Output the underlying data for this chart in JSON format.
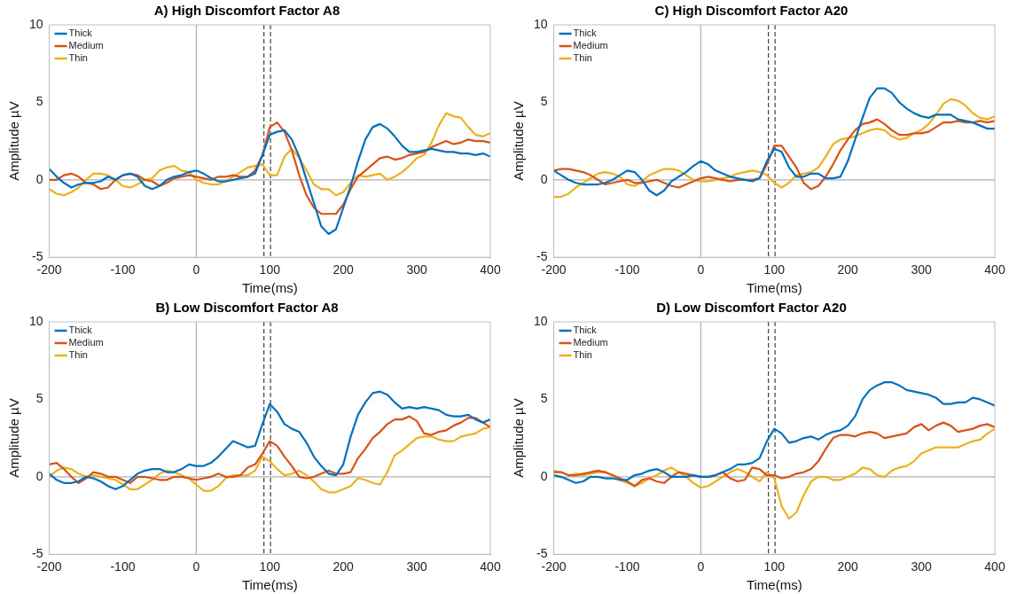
{
  "chart_data": [
    {
      "type": "line",
      "title": "A) High Discomfort Factor A8",
      "xlabel": "Time(ms)",
      "ylabel": "Amplitude µV",
      "x": [
        -200,
        -190,
        -180,
        -170,
        -160,
        -150,
        -140,
        -130,
        -120,
        -110,
        -100,
        -90,
        -80,
        -70,
        -60,
        -50,
        -40,
        -30,
        -20,
        -10,
        0,
        10,
        20,
        30,
        40,
        50,
        60,
        70,
        80,
        90,
        100,
        110,
        120,
        130,
        140,
        150,
        160,
        170,
        180,
        190,
        200,
        210,
        220,
        230,
        240,
        250,
        260,
        270,
        280,
        290,
        300,
        310,
        320,
        330,
        340,
        350,
        360,
        370,
        380,
        390,
        400
      ],
      "xlim": [
        -200,
        400
      ],
      "ylim": [
        -5,
        10
      ],
      "xticks": [
        -200,
        -100,
        0,
        100,
        200,
        300,
        400
      ],
      "yticks": [
        -5,
        0,
        5,
        10
      ],
      "grid": false,
      "legend": "top left",
      "ref_lines": [
        {
          "axis": "x",
          "value": 0,
          "color": "#b0b0b0",
          "line_style": "solid"
        },
        {
          "axis": "y",
          "value": 0,
          "color": "#b0b0b0",
          "line_style": "solid"
        },
        {
          "axis": "x",
          "value": 92,
          "color": "#404040",
          "line_style": "dashed"
        },
        {
          "axis": "x",
          "value": 101,
          "color": "#404040",
          "line_style": "dashed"
        }
      ],
      "series": [
        {
          "name": "Thick",
          "color": "#0072bd",
          "values": [
            0.7,
            0.2,
            -0.2,
            -0.5,
            -0.3,
            -0.2,
            -0.2,
            -0.1,
            0.2,
            0.0,
            0.3,
            0.4,
            0.2,
            -0.4,
            -0.6,
            -0.4,
            0.0,
            0.2,
            0.3,
            0.5,
            0.6,
            0.4,
            0.1,
            -0.1,
            -0.1,
            0.0,
            0.1,
            0.2,
            0.4,
            1.6,
            2.9,
            3.1,
            3.2,
            2.6,
            1.5,
            0.0,
            -1.5,
            -3.0,
            -3.5,
            -3.2,
            -1.8,
            -0.4,
            1.2,
            2.6,
            3.4,
            3.6,
            3.3,
            2.8,
            2.2,
            1.8,
            1.8,
            1.9,
            2.0,
            1.9,
            1.8,
            1.8,
            1.7,
            1.7,
            1.6,
            1.7,
            1.5
          ]
        },
        {
          "name": "Medium",
          "color": "#d95319",
          "values": [
            0.0,
            0.0,
            0.3,
            0.4,
            0.2,
            -0.2,
            -0.3,
            -0.6,
            -0.5,
            0.0,
            0.3,
            0.4,
            0.3,
            0.0,
            -0.1,
            -0.4,
            -0.2,
            0.1,
            0.2,
            0.3,
            0.2,
            0.1,
            0.0,
            0.2,
            0.2,
            0.3,
            0.2,
            0.2,
            0.6,
            1.6,
            3.4,
            3.7,
            3.1,
            1.9,
            0.3,
            -1.0,
            -1.8,
            -2.2,
            -2.2,
            -2.2,
            -1.6,
            -0.6,
            0.2,
            0.6,
            1.0,
            1.4,
            1.5,
            1.3,
            1.4,
            1.6,
            1.7,
            1.8,
            2.1,
            2.3,
            2.5,
            2.3,
            2.4,
            2.6,
            2.5,
            2.5,
            2.4
          ]
        },
        {
          "name": "Thin",
          "color": "#edb120",
          "values": [
            -0.6,
            -0.9,
            -1.0,
            -0.8,
            -0.5,
            0.0,
            0.4,
            0.4,
            0.3,
            0.0,
            -0.4,
            -0.5,
            -0.3,
            0.0,
            0.1,
            0.6,
            0.8,
            0.9,
            0.6,
            0.5,
            0.0,
            -0.2,
            -0.3,
            -0.3,
            -0.1,
            0.2,
            0.5,
            0.8,
            0.9,
            1.0,
            0.3,
            0.3,
            1.5,
            2.0,
            1.4,
            0.6,
            -0.3,
            -0.6,
            -0.6,
            -1.0,
            -0.8,
            -0.2,
            0.3,
            0.2,
            0.3,
            0.4,
            0.0,
            0.2,
            0.5,
            0.9,
            1.4,
            1.6,
            2.4,
            3.5,
            4.3,
            4.1,
            4.0,
            3.4,
            2.9,
            2.8,
            3.0
          ]
        }
      ]
    },
    {
      "type": "line",
      "title": "C) High Discomfort Factor A20",
      "xlabel": "Time(ms)",
      "ylabel": "Amplitude µV",
      "x": [
        -200,
        -190,
        -180,
        -170,
        -160,
        -150,
        -140,
        -130,
        -120,
        -110,
        -100,
        -90,
        -80,
        -70,
        -60,
        -50,
        -40,
        -30,
        -20,
        -10,
        0,
        10,
        20,
        30,
        40,
        50,
        60,
        70,
        80,
        90,
        100,
        110,
        120,
        130,
        140,
        150,
        160,
        170,
        180,
        190,
        200,
        210,
        220,
        230,
        240,
        250,
        260,
        270,
        280,
        290,
        300,
        310,
        320,
        330,
        340,
        350,
        360,
        370,
        380,
        390,
        400
      ],
      "xlim": [
        -200,
        400
      ],
      "ylim": [
        -5,
        10
      ],
      "xticks": [
        -200,
        -100,
        0,
        100,
        200,
        300,
        400
      ],
      "yticks": [
        -5,
        0,
        5,
        10
      ],
      "grid": false,
      "legend": "top left",
      "ref_lines": [
        {
          "axis": "x",
          "value": 0,
          "color": "#b0b0b0",
          "line_style": "solid"
        },
        {
          "axis": "y",
          "value": 0,
          "color": "#b0b0b0",
          "line_style": "solid"
        },
        {
          "axis": "x",
          "value": 92,
          "color": "#404040",
          "line_style": "dashed"
        },
        {
          "axis": "x",
          "value": 101,
          "color": "#404040",
          "line_style": "dashed"
        }
      ],
      "series": [
        {
          "name": "Thick",
          "color": "#0072bd",
          "values": [
            0.6,
            0.3,
            0.0,
            -0.2,
            -0.3,
            -0.3,
            -0.3,
            -0.2,
            0.0,
            0.3,
            0.6,
            0.5,
            0.0,
            -0.7,
            -1.0,
            -0.7,
            -0.1,
            0.2,
            0.5,
            0.9,
            1.2,
            1.0,
            0.6,
            0.4,
            0.2,
            0.1,
            0.0,
            -0.1,
            0.1,
            1.2,
            2.0,
            1.8,
            0.8,
            0.2,
            0.2,
            0.4,
            0.4,
            0.1,
            0.1,
            0.2,
            1.2,
            2.6,
            4.0,
            5.3,
            5.9,
            5.9,
            5.6,
            5.0,
            4.6,
            4.3,
            4.1,
            4.0,
            4.2,
            4.2,
            4.2,
            3.9,
            3.8,
            3.7,
            3.5,
            3.3,
            3.3
          ]
        },
        {
          "name": "Medium",
          "color": "#d95319",
          "values": [
            0.6,
            0.7,
            0.7,
            0.6,
            0.5,
            0.3,
            0.0,
            -0.3,
            -0.2,
            -0.1,
            0.0,
            -0.2,
            -0.2,
            -0.1,
            0.0,
            -0.2,
            -0.4,
            -0.5,
            -0.3,
            -0.1,
            0.1,
            0.2,
            0.1,
            0.0,
            -0.1,
            0.0,
            0.0,
            0.0,
            0.1,
            1.0,
            2.2,
            2.2,
            1.5,
            0.8,
            -0.2,
            -0.6,
            -0.4,
            0.2,
            1.0,
            1.9,
            2.6,
            3.2,
            3.6,
            3.7,
            3.9,
            3.6,
            3.2,
            2.9,
            2.9,
            3.0,
            3.0,
            3.1,
            3.4,
            3.7,
            3.7,
            3.8,
            3.7,
            3.7,
            3.8,
            3.7,
            3.8
          ]
        },
        {
          "name": "Thin",
          "color": "#edb120",
          "values": [
            -1.1,
            -1.1,
            -0.9,
            -0.5,
            -0.2,
            0.1,
            0.4,
            0.5,
            0.4,
            0.2,
            -0.3,
            -0.4,
            -0.1,
            0.3,
            0.5,
            0.7,
            0.7,
            0.6,
            0.3,
            0.0,
            -0.1,
            -0.1,
            0.0,
            0.1,
            0.2,
            0.4,
            0.5,
            0.6,
            0.5,
            0.3,
            -0.2,
            -0.5,
            -0.2,
            0.3,
            0.4,
            0.5,
            0.8,
            1.5,
            2.3,
            2.6,
            2.7,
            2.8,
            3.0,
            3.2,
            3.3,
            3.2,
            2.8,
            2.6,
            2.7,
            3.0,
            3.2,
            3.6,
            4.2,
            4.9,
            5.2,
            5.1,
            4.8,
            4.3,
            4.0,
            3.9,
            4.1
          ]
        }
      ]
    },
    {
      "type": "line",
      "title": "B) Low Discomfort Factor A8",
      "xlabel": "Time(ms)",
      "ylabel": "Amplitude µV",
      "x": [
        -200,
        -190,
        -180,
        -170,
        -160,
        -150,
        -140,
        -130,
        -120,
        -110,
        -100,
        -90,
        -80,
        -70,
        -60,
        -50,
        -40,
        -30,
        -20,
        -10,
        0,
        10,
        20,
        30,
        40,
        50,
        60,
        70,
        80,
        90,
        100,
        110,
        120,
        130,
        140,
        150,
        160,
        170,
        180,
        190,
        200,
        210,
        220,
        230,
        240,
        250,
        260,
        270,
        280,
        290,
        300,
        310,
        320,
        330,
        340,
        350,
        360,
        370,
        380,
        390,
        400
      ],
      "xlim": [
        -200,
        400
      ],
      "ylim": [
        -5,
        10
      ],
      "xticks": [
        -200,
        -100,
        0,
        100,
        200,
        300,
        400
      ],
      "yticks": [
        -5,
        0,
        5,
        10
      ],
      "grid": false,
      "legend": "top left",
      "ref_lines": [
        {
          "axis": "x",
          "value": 0,
          "color": "#b0b0b0",
          "line_style": "solid"
        },
        {
          "axis": "y",
          "value": 0,
          "color": "#b0b0b0",
          "line_style": "solid"
        },
        {
          "axis": "x",
          "value": 92,
          "color": "#404040",
          "line_style": "dashed"
        },
        {
          "axis": "x",
          "value": 101,
          "color": "#404040",
          "line_style": "dashed"
        }
      ],
      "series": [
        {
          "name": "Thick",
          "color": "#0072bd",
          "values": [
            0.2,
            -0.2,
            -0.4,
            -0.4,
            -0.3,
            0.0,
            -0.1,
            -0.3,
            -0.6,
            -0.8,
            -0.6,
            -0.2,
            0.2,
            0.4,
            0.5,
            0.5,
            0.3,
            0.3,
            0.5,
            0.8,
            0.7,
            0.7,
            0.9,
            1.3,
            1.8,
            2.3,
            2.1,
            1.9,
            2.0,
            3.4,
            4.7,
            4.2,
            3.4,
            3.1,
            2.9,
            2.2,
            1.3,
            0.7,
            0.2,
            0.1,
            0.8,
            2.6,
            4.0,
            4.8,
            5.4,
            5.5,
            5.3,
            4.8,
            4.4,
            4.5,
            4.4,
            4.5,
            4.4,
            4.3,
            4.0,
            3.9,
            3.9,
            4.0,
            3.7,
            3.5,
            3.7
          ]
        },
        {
          "name": "Medium",
          "color": "#d95319",
          "values": [
            0.8,
            0.9,
            0.5,
            0.0,
            -0.4,
            -0.1,
            0.3,
            0.2,
            0.0,
            0.0,
            -0.2,
            -0.4,
            0.0,
            0.0,
            -0.1,
            -0.2,
            -0.2,
            0.0,
            0.0,
            -0.1,
            -0.2,
            -0.1,
            0.0,
            0.2,
            0.0,
            0.0,
            0.1,
            0.6,
            0.8,
            1.5,
            2.3,
            2.0,
            1.3,
            0.7,
            0.0,
            -0.1,
            0.0,
            0.2,
            0.4,
            0.2,
            0.2,
            0.3,
            1.2,
            1.8,
            2.5,
            2.9,
            3.4,
            3.7,
            3.7,
            3.9,
            3.6,
            2.8,
            2.7,
            2.9,
            3.0,
            3.3,
            3.5,
            3.8,
            3.8,
            3.5,
            3.2
          ]
        },
        {
          "name": "Thin",
          "color": "#edb120",
          "values": [
            0.0,
            0.4,
            0.6,
            0.5,
            0.2,
            0.0,
            0.1,
            0.0,
            -0.1,
            -0.2,
            -0.5,
            -0.8,
            -0.8,
            -0.5,
            -0.2,
            0.2,
            0.4,
            0.3,
            0.1,
            -0.1,
            -0.5,
            -0.9,
            -0.9,
            -0.6,
            -0.1,
            0.1,
            0.1,
            0.1,
            0.4,
            1.3,
            1.0,
            0.5,
            0.1,
            0.2,
            0.4,
            0.1,
            -0.3,
            -0.8,
            -1.0,
            -1.0,
            -0.8,
            -0.6,
            -0.1,
            -0.2,
            -0.4,
            -0.5,
            0.3,
            1.4,
            1.7,
            2.1,
            2.5,
            2.6,
            2.6,
            2.4,
            2.3,
            2.3,
            2.6,
            2.7,
            2.8,
            3.1,
            3.2
          ]
        }
      ]
    },
    {
      "type": "line",
      "title": "D) Low Discomfort Factor A20",
      "xlabel": "Time(ms)",
      "ylabel": "Amplitude µV",
      "x": [
        -200,
        -190,
        -180,
        -170,
        -160,
        -150,
        -140,
        -130,
        -120,
        -110,
        -100,
        -90,
        -80,
        -70,
        -60,
        -50,
        -40,
        -30,
        -20,
        -10,
        0,
        10,
        20,
        30,
        40,
        50,
        60,
        70,
        80,
        90,
        100,
        110,
        120,
        130,
        140,
        150,
        160,
        170,
        180,
        190,
        200,
        210,
        220,
        230,
        240,
        250,
        260,
        270,
        280,
        290,
        300,
        310,
        320,
        330,
        340,
        350,
        360,
        370,
        380,
        390,
        400
      ],
      "xlim": [
        -200,
        400
      ],
      "ylim": [
        -5,
        10
      ],
      "xticks": [
        -200,
        -100,
        0,
        100,
        200,
        300,
        400
      ],
      "yticks": [
        -5,
        0,
        5,
        10
      ],
      "grid": false,
      "legend": "top left",
      "ref_lines": [
        {
          "axis": "x",
          "value": 0,
          "color": "#b0b0b0",
          "line_style": "solid"
        },
        {
          "axis": "y",
          "value": 0,
          "color": "#b0b0b0",
          "line_style": "solid"
        },
        {
          "axis": "x",
          "value": 92,
          "color": "#404040",
          "line_style": "dashed"
        },
        {
          "axis": "x",
          "value": 101,
          "color": "#404040",
          "line_style": "dashed"
        }
      ],
      "series": [
        {
          "name": "Thick",
          "color": "#0072bd",
          "values": [
            0.1,
            0.0,
            -0.2,
            -0.4,
            -0.3,
            0.0,
            0.0,
            -0.1,
            -0.1,
            -0.2,
            -0.2,
            0.1,
            0.2,
            0.4,
            0.5,
            0.3,
            0.0,
            0.0,
            0.0,
            0.1,
            0.0,
            0.0,
            0.1,
            0.3,
            0.5,
            0.8,
            0.8,
            0.9,
            1.2,
            2.3,
            3.1,
            2.8,
            2.2,
            2.3,
            2.5,
            2.6,
            2.4,
            2.7,
            2.9,
            3.0,
            3.3,
            3.9,
            5.0,
            5.6,
            5.9,
            6.1,
            6.1,
            5.9,
            5.6,
            5.5,
            5.4,
            5.3,
            5.1,
            4.7,
            4.7,
            4.8,
            4.8,
            5.1,
            5.0,
            4.8,
            4.6
          ]
        },
        {
          "name": "Medium",
          "color": "#d95319",
          "values": [
            0.3,
            0.3,
            0.1,
            0.1,
            0.2,
            0.3,
            0.4,
            0.3,
            0.1,
            -0.1,
            -0.3,
            -0.6,
            -0.2,
            -0.1,
            -0.3,
            -0.4,
            0.0,
            0.3,
            0.2,
            0.1,
            0.0,
            0.0,
            0.1,
            0.3,
            -0.1,
            -0.3,
            -0.2,
            0.6,
            0.5,
            0.1,
            0.1,
            -0.1,
            0.0,
            0.2,
            0.3,
            0.5,
            1.0,
            1.8,
            2.5,
            2.7,
            2.7,
            2.6,
            2.8,
            2.9,
            2.8,
            2.5,
            2.6,
            2.7,
            2.8,
            3.2,
            3.4,
            3.0,
            3.3,
            3.5,
            3.3,
            2.9,
            3.0,
            3.1,
            3.3,
            3.4,
            3.2
          ]
        },
        {
          "name": "Thin",
          "color": "#edb120",
          "values": [
            0.4,
            0.3,
            0.1,
            0.2,
            0.1,
            0.2,
            0.3,
            0.3,
            0.1,
            -0.2,
            -0.4,
            -0.6,
            -0.4,
            -0.1,
            0.1,
            0.4,
            0.6,
            0.3,
            0.0,
            -0.4,
            -0.7,
            -0.6,
            -0.3,
            0.0,
            0.3,
            0.5,
            0.3,
            0.0,
            -0.3,
            0.3,
            -0.1,
            -1.9,
            -2.7,
            -2.3,
            -1.2,
            -0.3,
            0.0,
            0.0,
            -0.2,
            -0.2,
            0.0,
            0.2,
            0.6,
            0.5,
            0.1,
            0.0,
            0.4,
            0.6,
            0.7,
            1.0,
            1.5,
            1.7,
            1.9,
            1.9,
            1.9,
            1.9,
            2.1,
            2.3,
            2.4,
            2.8,
            3.1
          ]
        }
      ]
    }
  ]
}
